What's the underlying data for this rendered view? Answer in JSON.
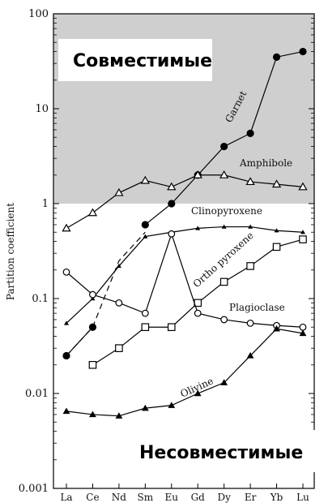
{
  "chart_data": {
    "type": "line",
    "ylabel": "Partition coefficient",
    "yscale": "log",
    "ylim": [
      0.001,
      100
    ],
    "yticks": [
      "0.001",
      "0.01",
      "0.1",
      "1",
      "10",
      "100"
    ],
    "categories": [
      "La",
      "Ce",
      "Nd",
      "Sm",
      "Eu",
      "Gd",
      "Dy",
      "Er",
      "Yb",
      "Lu"
    ],
    "shaded_region": {
      "from": 1,
      "to": 100,
      "color": "#cfcfcf"
    },
    "annotations": {
      "compatible": "Совместимые",
      "incompatible": "Несовместимые"
    },
    "series": [
      {
        "name": "Garnet",
        "marker": "filled-circle",
        "dashed_segment": [
          0.025,
          0.05,
          0.25,
          0.5
        ],
        "values": [
          0.025,
          0.05,
          null,
          0.6,
          1.0,
          2.0,
          4.0,
          5.5,
          35,
          40
        ]
      },
      {
        "name": "Amphibole",
        "marker": "open-triangle",
        "values": [
          0.55,
          0.8,
          1.3,
          1.75,
          1.5,
          2.0,
          2.0,
          1.7,
          1.6,
          1.5
        ]
      },
      {
        "name": "Clinopyroxene",
        "marker": "small-filled-triangle",
        "values": [
          0.055,
          0.1,
          0.22,
          0.45,
          0.5,
          0.55,
          0.57,
          0.57,
          0.52,
          0.5
        ]
      },
      {
        "name": "Ortho pyroxene",
        "marker": "open-square",
        "values": [
          null,
          0.02,
          0.03,
          0.05,
          0.05,
          0.09,
          0.15,
          0.22,
          0.35,
          0.42
        ]
      },
      {
        "name": "Plagioclase",
        "marker": "open-circle",
        "values": [
          0.19,
          0.11,
          0.09,
          0.07,
          0.48,
          0.07,
          0.06,
          0.055,
          0.052,
          0.05
        ]
      },
      {
        "name": "Olivine",
        "marker": "filled-triangle",
        "values": [
          0.0065,
          0.006,
          0.0058,
          0.007,
          0.0075,
          0.01,
          0.013,
          0.025,
          0.048,
          0.043
        ]
      }
    ]
  }
}
